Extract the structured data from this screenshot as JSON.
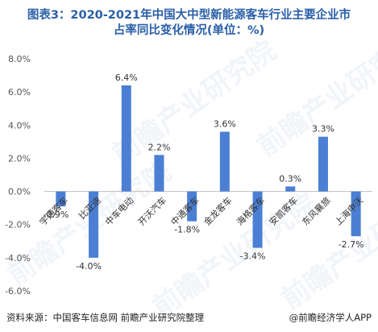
{
  "title_line1": "图表3：2020-2021年中国大中型新能源客车行业主要企业市",
  "title_line2": "占率同比变化情况(单位：%)",
  "source": "资料来源：中国客车信息网 前瞻产业研究院整理",
  "brand": "@前瞻经济学人APP",
  "watermark": "前瞻产业研究院",
  "colors": {
    "bar": "#4a7fd4",
    "axis": "#bfbfbf",
    "tick_text": "#555555",
    "label_text": "#333333"
  },
  "chart_data": {
    "type": "bar",
    "categories": [
      "宇通客车",
      "比亚迪",
      "中车电动",
      "开沃汽车",
      "中通客车",
      "金龙客车",
      "海格客车",
      "安凯客车",
      "东风襄旅",
      "上海申沃"
    ],
    "values": [
      -0.9,
      -4.0,
      6.4,
      2.2,
      -1.8,
      3.6,
      -3.4,
      0.3,
      3.3,
      -2.7
    ],
    "value_labels": [
      "-0.9%",
      "-4.0%",
      "6.4%",
      "2.2%",
      "-1.8%",
      "3.6%",
      "-3.4%",
      "0.3%",
      "3.3%",
      "-2.7%"
    ],
    "yticks": [
      8.0,
      6.0,
      4.0,
      2.0,
      0.0,
      -2.0,
      -4.0,
      -6.0
    ],
    "ytick_labels": [
      "8.0%",
      "6.0%",
      "4.0%",
      "2.0%",
      "0.0%",
      "-2.0%",
      "-4.0%",
      "-6.0%"
    ],
    "ylim": [
      -6.0,
      8.0
    ],
    "grid": false,
    "legend": "none"
  }
}
